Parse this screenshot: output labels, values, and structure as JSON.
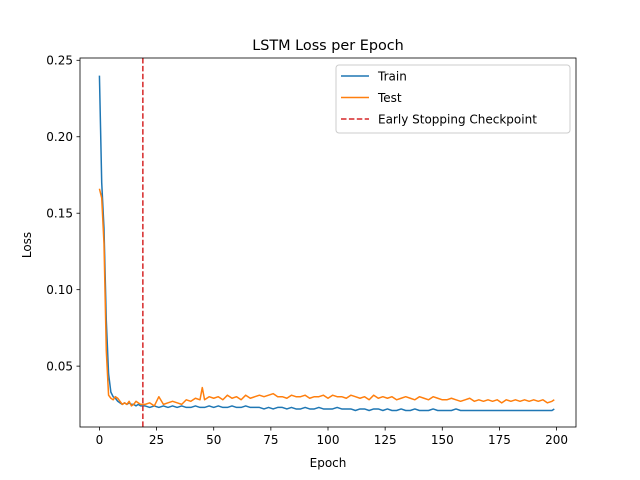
{
  "chart_data": {
    "type": "line",
    "title": "LSTM Loss per Epoch",
    "xlabel": "Epoch",
    "ylabel": "Loss",
    "xlim": [
      -8.5,
      208.5
    ],
    "ylim": [
      0.0102,
      0.2515
    ],
    "xticks": [
      0,
      25,
      50,
      75,
      100,
      125,
      150,
      175,
      200
    ],
    "xtick_labels": [
      "0",
      "25",
      "50",
      "75",
      "100",
      "125",
      "150",
      "175",
      "200"
    ],
    "yticks": [
      0.05,
      0.1,
      0.15,
      0.2,
      0.25
    ],
    "ytick_labels": [
      "0.05",
      "0.10",
      "0.15",
      "0.20",
      "0.25"
    ],
    "grid": false,
    "legend_position": "top-right",
    "series": [
      {
        "name": "Train",
        "color": "#1f77b4",
        "style": "solid",
        "x": [
          0,
          1,
          2,
          3,
          4,
          5,
          6,
          7,
          8,
          9,
          10,
          11,
          12,
          13,
          14,
          15,
          16,
          17,
          18,
          19,
          20,
          22,
          24,
          26,
          28,
          30,
          32,
          34,
          36,
          38,
          40,
          42,
          44,
          46,
          48,
          50,
          52,
          54,
          56,
          58,
          60,
          62,
          64,
          66,
          68,
          70,
          72,
          74,
          76,
          78,
          80,
          82,
          84,
          86,
          88,
          90,
          92,
          94,
          96,
          98,
          100,
          102,
          104,
          106,
          108,
          110,
          112,
          114,
          116,
          118,
          120,
          122,
          124,
          126,
          128,
          130,
          132,
          134,
          136,
          138,
          140,
          142,
          144,
          146,
          148,
          150,
          152,
          154,
          156,
          158,
          160,
          162,
          164,
          166,
          168,
          170,
          172,
          174,
          176,
          178,
          180,
          182,
          184,
          186,
          188,
          190,
          192,
          194,
          196,
          198,
          199
        ],
        "values": [
          0.24,
          0.17,
          0.14,
          0.08,
          0.045,
          0.033,
          0.03,
          0.029,
          0.027,
          0.026,
          0.025,
          0.026,
          0.025,
          0.026,
          0.025,
          0.025,
          0.024,
          0.025,
          0.024,
          0.024,
          0.024,
          0.023,
          0.024,
          0.023,
          0.024,
          0.023,
          0.024,
          0.023,
          0.024,
          0.023,
          0.023,
          0.024,
          0.023,
          0.023,
          0.024,
          0.023,
          0.024,
          0.023,
          0.023,
          0.024,
          0.023,
          0.023,
          0.024,
          0.023,
          0.023,
          0.023,
          0.022,
          0.023,
          0.022,
          0.023,
          0.023,
          0.022,
          0.023,
          0.022,
          0.022,
          0.023,
          0.022,
          0.022,
          0.023,
          0.022,
          0.022,
          0.022,
          0.023,
          0.022,
          0.022,
          0.022,
          0.021,
          0.022,
          0.022,
          0.021,
          0.022,
          0.022,
          0.021,
          0.022,
          0.021,
          0.021,
          0.022,
          0.021,
          0.021,
          0.022,
          0.021,
          0.021,
          0.021,
          0.022,
          0.021,
          0.021,
          0.021,
          0.021,
          0.022,
          0.021,
          0.021,
          0.021,
          0.021,
          0.021,
          0.021,
          0.021,
          0.021,
          0.021,
          0.021,
          0.021,
          0.021,
          0.021,
          0.021,
          0.021,
          0.021,
          0.021,
          0.021,
          0.021,
          0.021,
          0.021,
          0.022
        ]
      },
      {
        "name": "Test",
        "color": "#ff7f0e",
        "style": "solid",
        "x": [
          0,
          1,
          2,
          3,
          4,
          5,
          6,
          7,
          8,
          9,
          10,
          11,
          12,
          13,
          14,
          15,
          16,
          17,
          18,
          19,
          20,
          22,
          24,
          26,
          28,
          30,
          32,
          34,
          36,
          38,
          40,
          42,
          44,
          45,
          46,
          48,
          50,
          52,
          54,
          56,
          58,
          60,
          62,
          64,
          66,
          68,
          70,
          72,
          74,
          76,
          78,
          80,
          82,
          84,
          86,
          88,
          90,
          92,
          94,
          96,
          98,
          100,
          102,
          104,
          106,
          108,
          110,
          112,
          114,
          116,
          118,
          120,
          122,
          124,
          126,
          128,
          130,
          132,
          134,
          136,
          138,
          140,
          142,
          144,
          146,
          148,
          150,
          152,
          154,
          156,
          158,
          160,
          162,
          164,
          166,
          168,
          170,
          172,
          174,
          176,
          178,
          180,
          182,
          184,
          186,
          188,
          190,
          192,
          194,
          196,
          198,
          199
        ],
        "values": [
          0.166,
          0.16,
          0.13,
          0.06,
          0.031,
          0.029,
          0.028,
          0.03,
          0.029,
          0.027,
          0.025,
          0.026,
          0.025,
          0.027,
          0.024,
          0.025,
          0.027,
          0.026,
          0.025,
          0.025,
          0.025,
          0.026,
          0.024,
          0.03,
          0.025,
          0.026,
          0.027,
          0.026,
          0.025,
          0.028,
          0.027,
          0.029,
          0.028,
          0.036,
          0.028,
          0.03,
          0.029,
          0.03,
          0.028,
          0.031,
          0.029,
          0.03,
          0.028,
          0.031,
          0.029,
          0.03,
          0.031,
          0.03,
          0.031,
          0.032,
          0.03,
          0.03,
          0.029,
          0.031,
          0.03,
          0.03,
          0.031,
          0.029,
          0.03,
          0.03,
          0.031,
          0.029,
          0.031,
          0.03,
          0.03,
          0.029,
          0.031,
          0.03,
          0.029,
          0.03,
          0.028,
          0.031,
          0.029,
          0.03,
          0.029,
          0.03,
          0.028,
          0.029,
          0.03,
          0.029,
          0.028,
          0.03,
          0.029,
          0.028,
          0.03,
          0.029,
          0.028,
          0.028,
          0.029,
          0.028,
          0.027,
          0.028,
          0.029,
          0.027,
          0.028,
          0.027,
          0.028,
          0.027,
          0.028,
          0.026,
          0.028,
          0.027,
          0.028,
          0.027,
          0.028,
          0.027,
          0.028,
          0.027,
          0.028,
          0.026,
          0.027,
          0.028
        ]
      }
    ],
    "vlines": [
      {
        "name": "Early Stopping Checkpoint",
        "x": 19,
        "color": "#d62728",
        "style": "dashed"
      }
    ]
  }
}
